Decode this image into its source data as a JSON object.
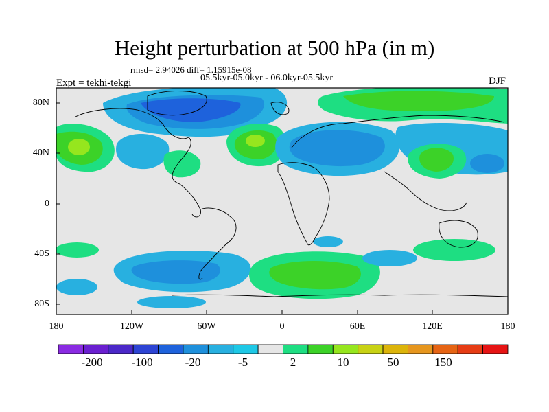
{
  "title": "Height perturbation at 500 hPa (in m)",
  "stats_line": "rmsd= 2.94026 diff= 1.15915e-08",
  "period_line": "05.5kyr-05.0kyr - 06.0kyr-05.5kyr",
  "left_label": "Expt = tekhi-tekgi",
  "right_label": "DJF",
  "lat_ticks": [
    "80N",
    "40N",
    "0",
    "40S",
    "80S"
  ],
  "lon_ticks": [
    "180",
    "120W",
    "60W",
    "0",
    "60E",
    "120E",
    "180"
  ],
  "colorbar": {
    "colors": [
      "#8a2be2",
      "#6a1fd0",
      "#4b28c8",
      "#2d44d4",
      "#1e62dc",
      "#1e90dc",
      "#28b0e0",
      "#1ec8e6",
      "#e6e6e6",
      "#1ede82",
      "#3cd228",
      "#96e61e",
      "#c8d214",
      "#dcb40a",
      "#e6961e",
      "#e66414",
      "#e63c14",
      "#e61414"
    ],
    "labels": [
      "-200",
      "-100",
      "-20",
      "-5",
      "2",
      "10",
      "50",
      "150"
    ]
  }
}
